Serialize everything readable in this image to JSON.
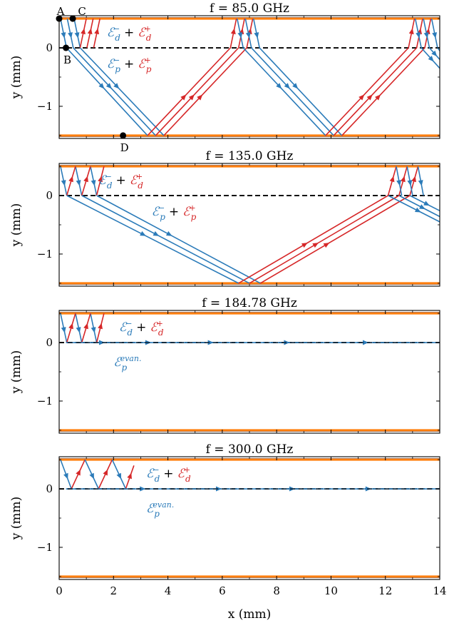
{
  "colors": {
    "blue": "#2b7bb9",
    "red": "#d62728",
    "boundary": "#ff7f0e",
    "boundary_dark": "#8c3a0a",
    "midline": "#000000"
  },
  "figure": {
    "xlabel": "x (mm)",
    "ylabel": "y (mm)",
    "xticks": [
      "0",
      "2",
      "4",
      "6",
      "8",
      "10",
      "12",
      "14"
    ],
    "yticks": [
      "0",
      "−1"
    ]
  },
  "chart_data": [
    {
      "type": "line",
      "title": "f = 85.0 GHz",
      "xlim": [
        0,
        14
      ],
      "ylim": [
        -1.55,
        0.55
      ],
      "grid": false,
      "boundaries_y": [
        0.5,
        -1.5
      ],
      "midline_y": 0,
      "series": [
        {
          "color": "blue",
          "x": [
            0.05,
            0.27,
            3.25
          ],
          "y": [
            0.5,
            0,
            -1.5
          ]
        },
        {
          "color": "blue",
          "x": [
            0.3,
            0.52,
            3.55
          ],
          "y": [
            0.5,
            0,
            -1.5
          ]
        },
        {
          "color": "blue",
          "x": [
            0.55,
            0.77,
            3.85
          ],
          "y": [
            0.5,
            0,
            -1.5
          ]
        },
        {
          "color": "red",
          "x": [
            0.77,
            1.0
          ],
          "y": [
            0,
            0.5
          ]
        },
        {
          "color": "red",
          "x": [
            1.02,
            1.25
          ],
          "y": [
            0,
            0.5
          ]
        },
        {
          "color": "red",
          "x": [
            1.27,
            1.5
          ],
          "y": [
            0,
            0.5
          ]
        },
        {
          "color": "red",
          "x": [
            3.25,
            6.3,
            6.52
          ],
          "y": [
            -1.5,
            0,
            0.5
          ]
        },
        {
          "color": "red",
          "x": [
            3.55,
            6.6,
            6.82
          ],
          "y": [
            -1.5,
            0,
            0.5
          ]
        },
        {
          "color": "red",
          "x": [
            3.85,
            6.9,
            7.12
          ],
          "y": [
            -1.5,
            0,
            0.5
          ]
        },
        {
          "color": "blue",
          "x": [
            6.55,
            6.77,
            9.8
          ],
          "y": [
            0.5,
            0,
            -1.5
          ]
        },
        {
          "color": "blue",
          "x": [
            6.85,
            7.07,
            10.1
          ],
          "y": [
            0.5,
            0,
            -1.5
          ]
        },
        {
          "color": "blue",
          "x": [
            7.15,
            7.37,
            10.4
          ],
          "y": [
            0.5,
            0,
            -1.5
          ]
        },
        {
          "color": "red",
          "x": [
            9.8,
            12.85,
            13.07
          ],
          "y": [
            -1.5,
            0,
            0.5
          ]
        },
        {
          "color": "red",
          "x": [
            10.1,
            13.15,
            13.37
          ],
          "y": [
            -1.5,
            0,
            0.5
          ]
        },
        {
          "color": "red",
          "x": [
            10.4,
            13.45,
            13.67
          ],
          "y": [
            -1.5,
            0,
            0.5
          ]
        },
        {
          "color": "blue",
          "x": [
            13.1,
            13.32,
            14.0
          ],
          "y": [
            0.5,
            0,
            -0.35
          ]
        },
        {
          "color": "blue",
          "x": [
            13.4,
            13.62,
            14.0
          ],
          "y": [
            0.5,
            0,
            -0.2
          ]
        },
        {
          "color": "blue",
          "x": [
            13.7,
            13.92,
            14.0
          ],
          "y": [
            0.5,
            0,
            -0.05
          ]
        }
      ],
      "legend": [
        {
          "x": 1.75,
          "y": 0.27,
          "parts": [
            {
              "text": "𝓔ₓ⁻",
              "color": "blue"
            }
          ]
        },
        {
          "x": 1.75,
          "y": -0.27,
          "parts": [
            {
              "text": "𝓔ₚ⁻",
              "color": "blue"
            }
          ]
        }
      ],
      "annotations": [
        {
          "label": "A",
          "x": 0.0,
          "y": 0.5,
          "pos": "above"
        },
        {
          "label": "C",
          "x": 0.5,
          "y": 0.5,
          "pos": "above-right"
        },
        {
          "label": "B",
          "x": 0.25,
          "y": 0.0,
          "pos": "below"
        },
        {
          "label": "D",
          "x": 2.35,
          "y": -1.5,
          "pos": "below"
        }
      ]
    },
    {
      "type": "line",
      "title": "f = 135.0 GHz",
      "xlim": [
        0,
        14
      ],
      "ylim": [
        -1.55,
        0.55
      ],
      "grid": false,
      "boundaries_y": [
        0.5,
        -1.5
      ],
      "midline_y": 0,
      "series": [
        {
          "color": "blue",
          "x": [
            0.05,
            0.28
          ],
          "y": [
            0.5,
            0
          ]
        },
        {
          "color": "blue",
          "x": [
            0.6,
            0.83
          ],
          "y": [
            0.5,
            0
          ]
        },
        {
          "color": "blue",
          "x": [
            1.15,
            1.38
          ],
          "y": [
            0.5,
            0
          ]
        },
        {
          "color": "red",
          "x": [
            0.28,
            0.6
          ],
          "y": [
            0,
            0.5
          ]
        },
        {
          "color": "red",
          "x": [
            0.83,
            1.15
          ],
          "y": [
            0,
            0.5
          ]
        },
        {
          "color": "red",
          "x": [
            1.38,
            1.65
          ],
          "y": [
            0,
            0.5
          ]
        },
        {
          "color": "blue",
          "x": [
            0.28,
            6.6
          ],
          "y": [
            0,
            -1.5
          ]
        },
        {
          "color": "blue",
          "x": [
            0.83,
            7.0
          ],
          "y": [
            0,
            -1.5
          ]
        },
        {
          "color": "blue",
          "x": [
            1.38,
            7.4
          ],
          "y": [
            0,
            -1.5
          ]
        },
        {
          "color": "red",
          "x": [
            6.6,
            12.1
          ],
          "y": [
            -1.5,
            0
          ]
        },
        {
          "color": "red",
          "x": [
            7.0,
            12.5
          ],
          "y": [
            -1.5,
            0
          ]
        },
        {
          "color": "red",
          "x": [
            7.4,
            12.9
          ],
          "y": [
            -1.5,
            0
          ]
        },
        {
          "color": "blue",
          "x": [
            12.1,
            14.0
          ],
          "y": [
            0,
            -0.45
          ]
        },
        {
          "color": "blue",
          "x": [
            12.5,
            14.0
          ],
          "y": [
            0,
            -0.36
          ]
        },
        {
          "color": "blue",
          "x": [
            12.9,
            14.0
          ],
          "y": [
            0,
            -0.26
          ]
        },
        {
          "color": "red",
          "x": [
            12.1,
            12.4
          ],
          "y": [
            0,
            0.5
          ]
        },
        {
          "color": "red",
          "x": [
            12.5,
            12.8
          ],
          "y": [
            0,
            0.5
          ]
        },
        {
          "color": "red",
          "x": [
            12.9,
            13.2
          ],
          "y": [
            0,
            0.5
          ]
        },
        {
          "color": "blue",
          "x": [
            12.4,
            12.6
          ],
          "y": [
            0.5,
            0
          ]
        },
        {
          "color": "blue",
          "x": [
            12.8,
            13.0
          ],
          "y": [
            0.5,
            0
          ]
        },
        {
          "color": "blue",
          "x": [
            13.2,
            13.4
          ],
          "y": [
            0.5,
            0
          ]
        }
      ],
      "legend": [
        {
          "x": 1.45,
          "y": 0.27,
          "parts": [
            {
              "text": "𝓔ₓ⁻",
              "color": "blue"
            }
          ]
        },
        {
          "x": 3.4,
          "y": -0.27,
          "parts": [
            {
              "text": "𝓔ₚ⁻",
              "color": "blue"
            }
          ]
        }
      ],
      "annotations": []
    },
    {
      "type": "line",
      "title": "f = 184.78 GHz",
      "xlim": [
        0,
        14
      ],
      "ylim": [
        -1.55,
        0.55
      ],
      "grid": false,
      "boundaries_y": [
        0.5,
        -1.5
      ],
      "midline_y": 0,
      "evanescent": {
        "color": "blue",
        "x_start": 0.25,
        "arrows_x": [
          1.6,
          3.3,
          5.6,
          8.4,
          11.3
        ]
      },
      "series": [
        {
          "color": "blue",
          "x": [
            0.05,
            0.28
          ],
          "y": [
            0.5,
            0
          ]
        },
        {
          "color": "blue",
          "x": [
            0.6,
            0.83
          ],
          "y": [
            0.5,
            0
          ]
        },
        {
          "color": "blue",
          "x": [
            1.15,
            1.38
          ],
          "y": [
            0.5,
            0
          ]
        },
        {
          "color": "red",
          "x": [
            0.28,
            0.6
          ],
          "y": [
            0,
            0.5
          ]
        },
        {
          "color": "red",
          "x": [
            0.83,
            1.15
          ],
          "y": [
            0,
            0.5
          ]
        },
        {
          "color": "red",
          "x": [
            1.38,
            1.65
          ],
          "y": [
            0,
            0.5
          ]
        }
      ],
      "legend": [
        {
          "x": 2.2,
          "y": 0.27,
          "parts": [
            {
              "text": "𝓔ₓ⁻",
              "color": "blue"
            }
          ]
        },
        {
          "x": 2.0,
          "y": -0.33,
          "parts": [
            {
              "text": "𝓔ₚ",
              "color": "blue"
            }
          ]
        }
      ],
      "annotations": []
    },
    {
      "type": "line",
      "title": "f = 300.0 GHz",
      "xlim": [
        0,
        14
      ],
      "ylim": [
        -1.55,
        0.55
      ],
      "grid": false,
      "boundaries_y": [
        0.5,
        -1.5
      ],
      "midline_y": 0,
      "evanescent": {
        "color": "blue",
        "x_start": 0.25,
        "arrows_x": [
          3.1,
          5.9,
          8.6,
          11.4
        ]
      },
      "series": [
        {
          "color": "blue",
          "x": [
            0.05,
            0.45
          ],
          "y": [
            0.5,
            0
          ]
        },
        {
          "color": "red",
          "x": [
            0.45,
            0.95
          ],
          "y": [
            0,
            0.5
          ]
        },
        {
          "color": "blue",
          "x": [
            0.95,
            1.45
          ],
          "y": [
            0.5,
            0
          ]
        },
        {
          "color": "red",
          "x": [
            1.45,
            1.95
          ],
          "y": [
            0,
            0.5
          ]
        },
        {
          "color": "blue",
          "x": [
            1.95,
            2.45
          ],
          "y": [
            0.5,
            0
          ]
        },
        {
          "color": "red",
          "x": [
            2.45,
            2.75
          ],
          "y": [
            0,
            0.4
          ]
        }
      ],
      "legend": [
        {
          "x": 3.2,
          "y": 0.27,
          "parts": [
            {
              "text": "𝓔ₓ⁻",
              "color": "blue"
            }
          ]
        },
        {
          "x": 3.2,
          "y": -0.33,
          "parts": [
            {
              "text": "𝓔ₚ",
              "color": "blue"
            }
          ]
        }
      ],
      "annotations": []
    }
  ]
}
